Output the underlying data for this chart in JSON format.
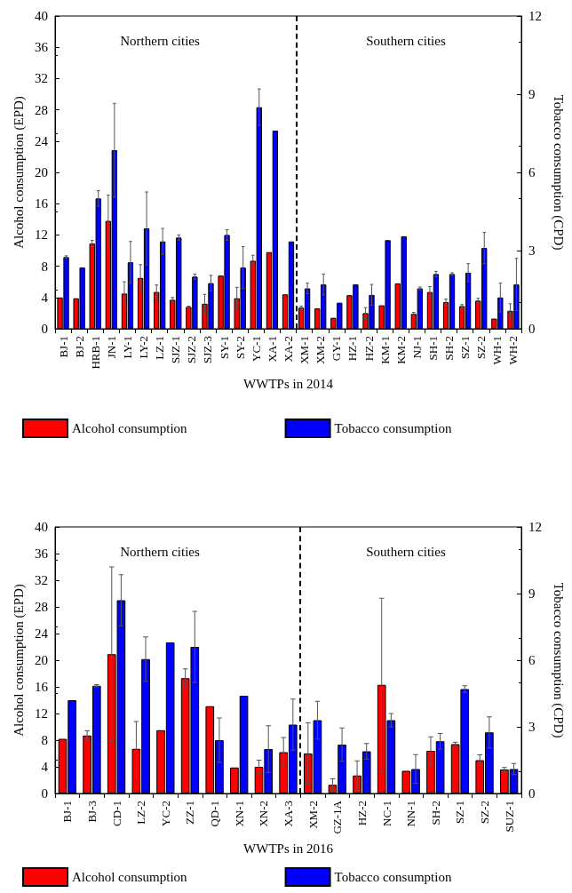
{
  "chart_data": [
    {
      "type": "bar",
      "xlabel": "WWTPs in 2014",
      "ylabel": "Alcohol consumption (EPD)",
      "y2label": "Tobacco consumption (CPD)",
      "categories": [
        "BJ-1",
        "BJ-2",
        "HRB-1",
        "JN-1",
        "LY-1",
        "LY-2",
        "LZ-1",
        "SJZ-1",
        "SJZ-2",
        "SJZ-3",
        "SY-1",
        "SY-2",
        "YC-1",
        "XA-1",
        "XA-2",
        "XM-1",
        "XM-2",
        "GY-1",
        "HZ-1",
        "HZ-2",
        "KM-1",
        "KM-2",
        "NJ-1",
        "SH-1",
        "SH-2",
        "SZ-1",
        "SZ-2",
        "WH-1",
        "WH-2"
      ],
      "series": [
        {
          "name": "Alcohol consumption",
          "color": "#ff0000",
          "values": [
            4.0,
            3.9,
            10.9,
            13.8,
            4.5,
            6.5,
            4.7,
            3.7,
            2.8,
            3.2,
            6.8,
            3.9,
            8.7,
            9.8,
            4.4,
            2.7,
            2.6,
            1.4,
            4.3,
            2.0,
            3.0,
            5.8,
            1.9,
            4.7,
            3.4,
            2.9,
            3.6,
            1.3,
            2.3
          ],
          "errors": [
            null,
            null,
            0.4,
            3.3,
            1.5,
            1.7,
            0.9,
            0.3,
            0.1,
            1.2,
            null,
            1.4,
            0.7,
            null,
            null,
            0.2,
            null,
            null,
            null,
            0.7,
            null,
            null,
            0.2,
            0.7,
            0.4,
            0.2,
            0.3,
            null,
            0.9
          ]
        },
        {
          "name": "Tobacco consumption",
          "color": "#0000ff",
          "axis": "y2",
          "values": [
            2.75,
            2.35,
            5.0,
            6.85,
            2.55,
            3.85,
            3.35,
            3.5,
            2.0,
            1.75,
            3.6,
            2.35,
            8.5,
            7.6,
            3.35,
            1.55,
            1.7,
            1.0,
            1.7,
            1.3,
            3.4,
            3.55,
            1.55,
            2.1,
            2.1,
            2.15,
            3.1,
            1.2,
            1.7
          ],
          "errors": [
            0.05,
            null,
            0.3,
            1.8,
            0.8,
            1.4,
            0.5,
            0.1,
            0.1,
            0.3,
            0.2,
            0.8,
            0.7,
            null,
            null,
            0.2,
            0.4,
            null,
            null,
            0.4,
            null,
            null,
            0.05,
            0.1,
            0.05,
            0.35,
            0.6,
            0.55,
            1.0
          ]
        }
      ],
      "ylim": [
        0,
        40
      ],
      "yticks": [
        0,
        4,
        8,
        12,
        16,
        20,
        24,
        28,
        32,
        36,
        40
      ],
      "y2lim": [
        0,
        12
      ],
      "y2ticks": [
        0,
        3,
        6,
        9,
        12
      ],
      "annotations": [
        "Northern cities",
        "Southern cities"
      ],
      "legend": "bottom",
      "grid": false
    },
    {
      "type": "bar",
      "xlabel": "WWTPs in 2016",
      "ylabel": "Alcohol consumption (EPD)",
      "y2label": "Tobacco consumption (CPD)",
      "categories": [
        "BJ-1",
        "BJ-3",
        "CD-1",
        "LZ-2",
        "YC-2",
        "ZZ-1",
        "QD-1",
        "XN-1",
        "XN-2",
        "XA-3",
        "XM-2",
        "GZ-1A",
        "HZ-2",
        "NC-1",
        "NN-1",
        "SH-2",
        "SZ-1",
        "SZ-2",
        "SUZ-1"
      ],
      "series": [
        {
          "name": "Alcohol consumption",
          "color": "#ff0000",
          "values": [
            8.2,
            8.7,
            20.9,
            6.7,
            9.5,
            17.3,
            13.1,
            3.9,
            4.0,
            6.2,
            6.0,
            1.3,
            2.7,
            16.3,
            3.4,
            6.4,
            7.4,
            5.0,
            3.6
          ],
          "errors": [
            null,
            0.7,
            13.1,
            4.1,
            null,
            1.4,
            null,
            null,
            1.0,
            2.2,
            4.6,
            0.9,
            2.2,
            13.0,
            null,
            2.1,
            0.3,
            0.8,
            0.3
          ]
        },
        {
          "name": "Tobacco consumption",
          "color": "#0000ff",
          "axis": "y2",
          "values": [
            4.2,
            4.85,
            8.7,
            6.05,
            6.8,
            6.6,
            2.4,
            4.4,
            2.0,
            3.1,
            3.3,
            2.2,
            1.9,
            3.3,
            1.1,
            2.35,
            4.7,
            2.75,
            1.1
          ],
          "errors": [
            null,
            0.05,
            1.15,
            1.0,
            null,
            1.6,
            1.0,
            null,
            1.05,
            1.15,
            0.85,
            0.75,
            0.35,
            0.3,
            0.65,
            0.35,
            0.15,
            0.7,
            0.25
          ]
        }
      ],
      "ylim": [
        0,
        40
      ],
      "yticks": [
        0,
        4,
        8,
        12,
        16,
        20,
        24,
        28,
        32,
        36,
        40
      ],
      "y2lim": [
        0,
        12
      ],
      "y2ticks": [
        0,
        3,
        6,
        9,
        12
      ],
      "annotations": [
        "Northern cities",
        "Southern cities"
      ],
      "legend": "bottom",
      "grid": false
    }
  ]
}
